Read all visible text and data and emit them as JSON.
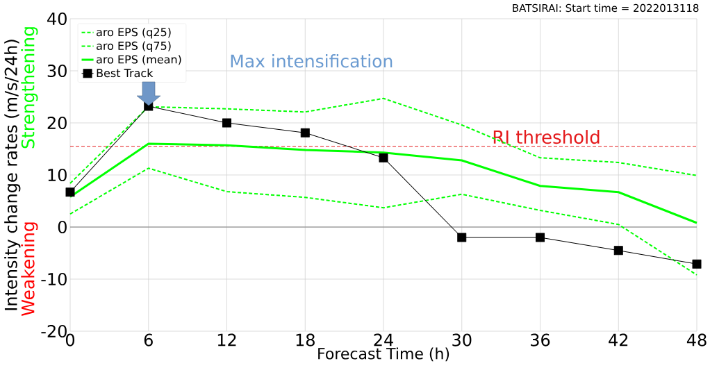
{
  "chart_data": {
    "type": "line",
    "title": "BATSIRAI: Start time = 2022013118",
    "xlabel": "Forecast Time (h)",
    "ylabel": "Intensity change rates (m/s/24h)",
    "x": [
      0,
      6,
      12,
      18,
      24,
      30,
      36,
      42,
      48
    ],
    "series": [
      {
        "name": "aro EPS (q25)",
        "color": "#00ff00",
        "line_style": "dashed",
        "marker": "none",
        "values": [
          2.5,
          11.3,
          6.8,
          5.7,
          3.7,
          6.3,
          3.2,
          0.5,
          -9.2
        ]
      },
      {
        "name": "aro EPS (q75)",
        "color": "#00ff00",
        "line_style": "dashed",
        "marker": "none",
        "values": [
          8.4,
          23.1,
          22.7,
          22.1,
          24.7,
          19.6,
          13.3,
          12.4,
          9.9
        ]
      },
      {
        "name": "aro EPS (mean)",
        "color": "#00ff00",
        "line_style": "solid",
        "marker": "none",
        "values": [
          5.8,
          16.0,
          15.7,
          14.8,
          14.3,
          12.8,
          7.9,
          6.7,
          0.8
        ]
      },
      {
        "name": "Best Track",
        "color": "#000000",
        "line_style": "solid",
        "marker": "square",
        "values": [
          6.7,
          23.2,
          20.0,
          18.1,
          13.3,
          -2.0,
          -2.0,
          -4.5,
          -7.1
        ]
      }
    ],
    "xlim": [
      0,
      48
    ],
    "xticks": [
      0,
      6,
      12,
      18,
      24,
      30,
      36,
      42,
      48
    ],
    "ylim": [
      -20,
      40
    ],
    "yticks": [
      -20,
      -10,
      0,
      10,
      20,
      30,
      40
    ],
    "grid": true,
    "legend": "top left",
    "ref_lines": [
      {
        "axis": "y",
        "value": 15.5,
        "label": "RI threshold",
        "color": "#e41a1c",
        "line_style": "dashed"
      },
      {
        "axis": "y",
        "value": 0,
        "color": "#808080",
        "line_style": "solid"
      }
    ],
    "annotations": [
      "Max intensification",
      "Strengthening",
      "Weakening"
    ]
  }
}
